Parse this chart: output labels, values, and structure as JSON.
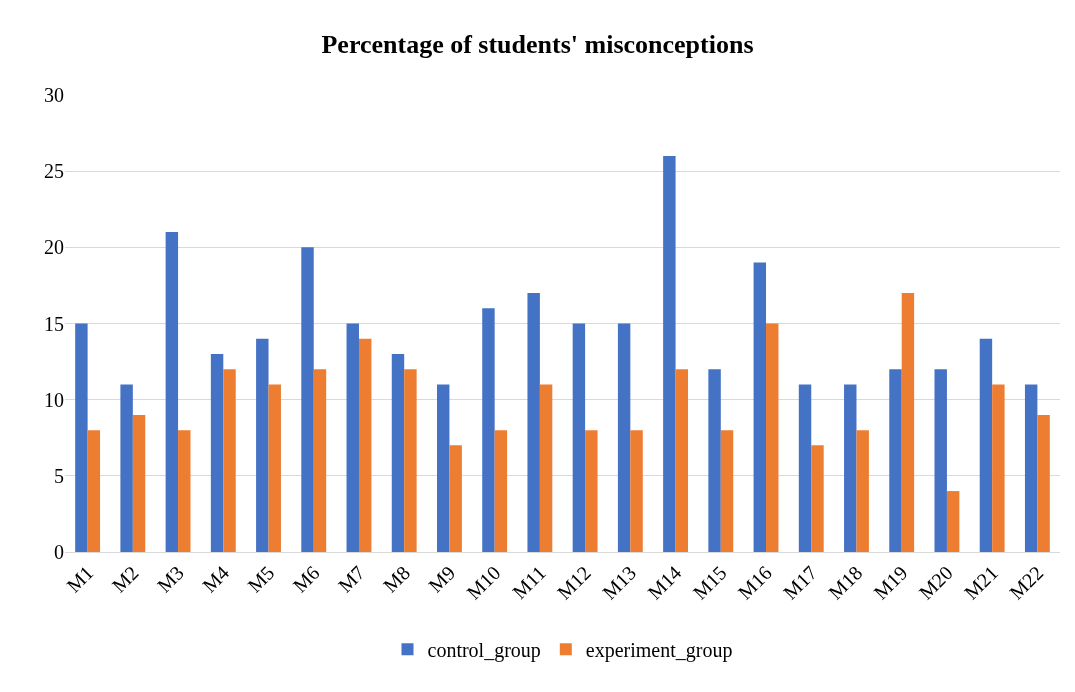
{
  "chart_data": {
    "type": "bar",
    "title": "Percentage of students' misconceptions",
    "categories": [
      "M1",
      "M2",
      "M3",
      "M4",
      "M5",
      "M6",
      "M7",
      "M8",
      "M9",
      "M10",
      "M11",
      "M12",
      "M13",
      "M14",
      "M15",
      "M16",
      "M17",
      "M18",
      "M19",
      "M20",
      "M21",
      "M22"
    ],
    "series": [
      {
        "name": "control_group",
        "color": "#4472c4",
        "values": [
          15,
          11,
          21,
          13,
          14,
          20,
          15,
          13,
          11,
          16,
          17,
          15,
          15,
          26,
          12,
          19,
          11,
          11,
          12,
          12,
          14,
          11
        ]
      },
      {
        "name": "experiment_group",
        "color": "#ed7d31",
        "values": [
          8,
          9,
          8,
          12,
          11,
          12,
          14,
          12,
          7,
          8,
          11,
          8,
          8,
          12,
          8,
          15,
          7,
          8,
          17,
          4,
          11,
          9
        ]
      }
    ],
    "ylim": [
      0,
      30
    ],
    "yticks": [
      0,
      5,
      10,
      15,
      20,
      25,
      30
    ],
    "grid": "y",
    "legend": "bottom"
  }
}
